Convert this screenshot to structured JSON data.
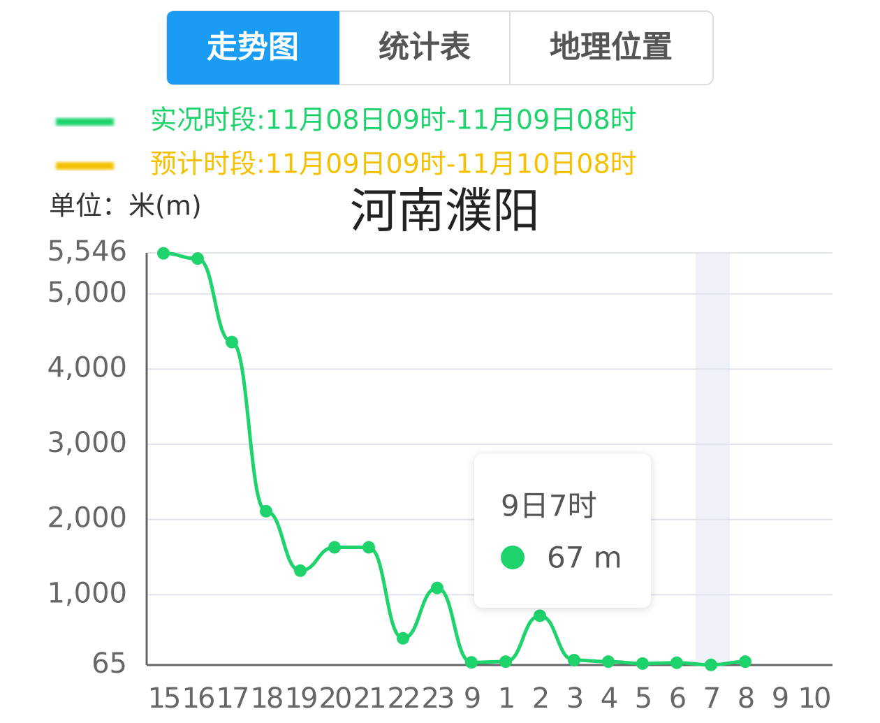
{
  "tabs": [
    "走势图",
    "统计表",
    "地理位置"
  ],
  "chart_data": {
    "type": "line",
    "title": "河南濮阳",
    "unit_label": "单位：米(m)",
    "categories": [
      "15",
      "16",
      "17",
      "18",
      "19",
      "20",
      "21",
      "22",
      "23",
      "9",
      "1",
      "2",
      "3",
      "4",
      "5",
      "6",
      "7",
      "8",
      "9",
      "10"
    ],
    "series": [
      {
        "name": "实况时段:11月08日09时-11月09日08时",
        "color": "#1ed36b",
        "values": [
          5540,
          5470,
          4360,
          2110,
          1320,
          1630,
          1630,
          420,
          1090,
          100,
          110,
          720,
          130,
          110,
          85,
          95,
          67,
          110,
          null,
          null
        ]
      },
      {
        "name": "预计时段:11月09日09时-11月10日08时",
        "color": "#f5c000",
        "values": [
          null,
          null,
          null,
          null,
          null,
          null,
          null,
          null,
          null,
          null,
          null,
          null,
          null,
          null,
          null,
          null,
          null,
          null,
          null,
          null
        ]
      }
    ],
    "ylim": [
      65,
      5546
    ],
    "yticks": [
      65,
      {
        "value": 1000,
        "label": "1,000"
      },
      {
        "value": 2000,
        "label": "2,000"
      },
      {
        "value": 3000,
        "label": "3,000"
      },
      {
        "value": 4000,
        "label": "4,000"
      },
      {
        "value": 5000,
        "label": "5,000"
      },
      {
        "value": 5546,
        "label": "5,546"
      }
    ],
    "grid": true,
    "tooltip": {
      "title": "9日7时",
      "text": "67 m"
    }
  }
}
